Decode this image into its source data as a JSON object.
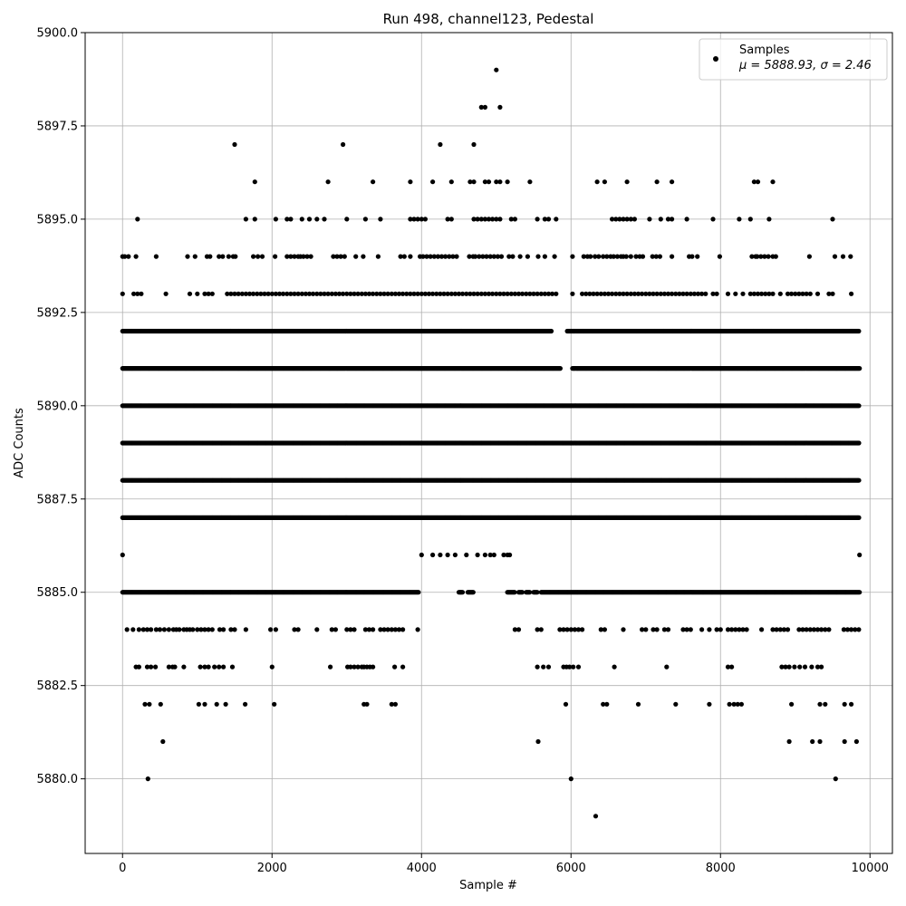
{
  "chart_data": {
    "type": "scatter",
    "title": "Run 498, channel123, Pedestal",
    "xlabel": "Sample #",
    "ylabel": "ADC Counts",
    "xlim": [
      -500,
      10300
    ],
    "ylim": [
      5878,
      5900
    ],
    "xticks": [
      0,
      2000,
      4000,
      6000,
      8000,
      10000
    ],
    "xtick_labels": [
      "0",
      "2000",
      "4000",
      "6000",
      "8000",
      "10000"
    ],
    "yticks": [
      5880,
      5882.5,
      5885,
      5887.5,
      5890,
      5892.5,
      5895,
      5897.5,
      5900
    ],
    "ytick_labels": [
      "5880.0",
      "5882.5",
      "5885.0",
      "5887.5",
      "5890.0",
      "5892.5",
      "5895.0",
      "5897.5",
      "5900.0"
    ],
    "grid": true,
    "legend": {
      "placement": "top-right",
      "entries": [
        {
          "label": "Samples",
          "stats": "μ = 5888.93, σ = 2.46"
        }
      ]
    },
    "marker_color": "#000000",
    "series": [
      {
        "name": "Samples",
        "n_samples": 9860,
        "levels": [
          {
            "y": 5887,
            "x": [
              0,
              9860
            ]
          },
          {
            "y": 5888,
            "x": [
              0,
              9860
            ]
          },
          {
            "y": 5889,
            "x": [
              0,
              9860
            ]
          },
          {
            "y": 5890,
            "x": [
              0,
              9860
            ]
          },
          {
            "y": 5891,
            "x": [
              0,
              5860,
              6020,
              9860
            ]
          },
          {
            "y": 5892,
            "x": [
              0,
              5740,
              5950,
              9860
            ]
          },
          {
            "y": 5893,
            "x": [
              0,
              150,
              200,
              250,
              580,
              900,
              1000,
              1100,
              1150,
              1200,
              1400,
              1450,
              1500,
              1550,
              1600,
              1650,
              1700,
              1750,
              1800,
              1850,
              1900,
              1950,
              2000,
              2050,
              2100,
              2150,
              2200,
              2250,
              2300,
              2350,
              2400,
              2450,
              2500,
              2550,
              2600,
              2650,
              2700,
              2750,
              2800,
              2850,
              2900,
              2950,
              3000,
              3050,
              3100,
              3150,
              3200,
              3250,
              3300,
              3350,
              3400,
              3450,
              3500,
              3550,
              3600,
              3650,
              3700,
              3750,
              3800,
              3850,
              3900,
              3950,
              4000,
              4050,
              4100,
              4150,
              4200,
              4250,
              4300,
              4350,
              4400,
              4450,
              4500,
              4550,
              4600,
              4650,
              4700,
              4750,
              4800,
              4850,
              4900,
              4950,
              5000,
              5050,
              5100,
              5150,
              5200,
              5250,
              5300,
              5350,
              5400,
              5450,
              5500,
              5550,
              5600,
              5650,
              5700,
              5750,
              5800,
              6020,
              6150,
              6200,
              6250,
              6300,
              6350,
              6400,
              6450,
              6500,
              6550,
              6600,
              6650,
              6700,
              6750,
              6800,
              6850,
              6900,
              6950,
              7000,
              7050,
              7100,
              7150,
              7200,
              7250,
              7300,
              7350,
              7400,
              7450,
              7500,
              7550,
              7600,
              7650,
              7700,
              7750,
              7800,
              7900,
              7950,
              8100,
              8200,
              8300,
              8400,
              8450,
              8500,
              8550,
              8600,
              8650,
              8700,
              8800,
              8900,
              8950,
              9000,
              9050,
              9100,
              9150,
              9200,
              9300,
              9450,
              9500,
              9750
            ]
          },
          {
            "y": 5894,
            "x": [
              0,
              30,
              80,
              180,
              450,
              870,
              970,
              1130,
              1170,
              1290,
              1340,
              1420,
              1480,
              1510,
              1750,
              1810,
              1870,
              2040,
              2200,
              2250,
              2300,
              2350,
              2380,
              2420,
              2470,
              2520,
              2820,
              2870,
              2920,
              2970,
              3120,
              3220,
              3420,
              3720,
              3770,
              3850,
              3980,
              4020,
              4070,
              4120,
              4170,
              4220,
              4270,
              4320,
              4370,
              4420,
              4470,
              4640,
              4690,
              4720,
              4770,
              4820,
              4870,
              4920,
              4970,
              5020,
              5070,
              5170,
              5220,
              5320,
              5420,
              5560,
              5650,
              5780,
              6020,
              6170,
              6220,
              6260,
              6320,
              6370,
              6430,
              6480,
              6530,
              6570,
              6620,
              6670,
              6700,
              6740,
              6800,
              6870,
              6920,
              6960,
              7090,
              7140,
              7190,
              7350,
              7580,
              7620,
              7690,
              7990,
              8420,
              8470,
              8490,
              8540,
              8590,
              8640,
              8700,
              8740,
              9190,
              9530,
              9640,
              9740
            ]
          },
          {
            "y": 5895,
            "x": [
              200,
              1650,
              1770,
              2050,
              2200,
              2250,
              2400,
              2500,
              2600,
              2700,
              3000,
              3250,
              3450,
              3850,
              3900,
              3950,
              4000,
              4050,
              4350,
              4400,
              4700,
              4750,
              4800,
              4850,
              4900,
              4950,
              5000,
              5050,
              5200,
              5250,
              5550,
              5650,
              5700,
              5800,
              6550,
              6600,
              6650,
              6700,
              6750,
              6800,
              6850,
              7050,
              7200,
              7300,
              7350,
              7550,
              7900,
              8250,
              8400,
              8650,
              9500
            ]
          },
          {
            "y": 5896,
            "x": [
              1770,
              2750,
              3350,
              3850,
              4150,
              4400,
              4650,
              4700,
              4850,
              4900,
              5000,
              5050,
              5150,
              5450,
              6350,
              6450,
              6750,
              7150,
              7350,
              8450,
              8500,
              8700
            ]
          },
          {
            "y": 5897,
            "x": [
              1500,
              2950,
              4250,
              4700
            ]
          },
          {
            "y": 5898,
            "x": [
              4800,
              4850,
              5050
            ]
          },
          {
            "y": 5899,
            "x": [
              5000
            ]
          },
          {
            "y": 5886,
            "x": [
              0,
              4000,
              4150,
              4250,
              4350,
              4450,
              4600,
              4750,
              4850,
              4920,
              4970,
              5100,
              5150,
              5180,
              9860
            ]
          },
          {
            "y": 5885,
            "x": [
              0,
              3960,
              4500,
              4550,
              4620,
              4700,
              5150,
              5250,
              5300,
              5350,
              5400,
              5450,
              5500,
              5550,
              5600,
              9860
            ]
          },
          {
            "y": 5884,
            "x": [
              60,
              140,
              220,
              280,
              330,
              380,
              450,
              500,
              560,
              620,
              680,
              720,
              760,
              820,
              860,
              900,
              940,
              1000,
              1050,
              1100,
              1150,
              1200,
              1300,
              1350,
              1450,
              1500,
              1650,
              1980,
              2050,
              2300,
              2350,
              2600,
              2800,
              2850,
              3000,
              3050,
              3100,
              3250,
              3300,
              3350,
              3450,
              3500,
              3550,
              3600,
              3650,
              3700,
              3750,
              3950,
              5250,
              5300,
              5550,
              5600,
              5850,
              5900,
              5950,
              6000,
              6050,
              6100,
              6150,
              6400,
              6450,
              6700,
              6950,
              7000,
              7100,
              7150,
              7250,
              7300,
              7500,
              7550,
              7600,
              7750,
              7850,
              7950,
              8000,
              8100,
              8150,
              8200,
              8250,
              8300,
              8350,
              8550,
              8700,
              8750,
              8800,
              8850,
              8900,
              9050,
              9100,
              9150,
              9200,
              9250,
              9300,
              9350,
              9400,
              9450,
              9650,
              9700,
              9750,
              9800,
              9850
            ]
          },
          {
            "y": 5883,
            "x": [
              180,
              220,
              330,
              380,
              440,
              620,
              670,
              700,
              820,
              1040,
              1100,
              1150,
              1230,
              1290,
              1350,
              1470,
              2000,
              2780,
              3010,
              3050,
              3100,
              3150,
              3200,
              3230,
              3270,
              3310,
              3350,
              3640,
              3750,
              5550,
              5630,
              5700,
              5900,
              5940,
              5980,
              6030,
              6100,
              6580,
              7280,
              8100,
              8150,
              8820,
              8870,
              8920,
              8990,
              9060,
              9130,
              9220,
              9300,
              9350
            ]
          },
          {
            "y": 5882,
            "x": [
              300,
              360,
              510,
              1020,
              1100,
              1260,
              1380,
              1640,
              2030,
              3230,
              3270,
              3600,
              3650,
              5930,
              6430,
              6480,
              6900,
              7400,
              7850,
              8120,
              8180,
              8230,
              8280,
              8950,
              9330,
              9400,
              9660,
              9750
            ]
          },
          {
            "y": 5881,
            "x": [
              540,
              5560,
              8920,
              9230,
              9330,
              9660,
              9820
            ]
          },
          {
            "y": 5880,
            "x": [
              340,
              6000,
              9540
            ]
          },
          {
            "y": 5879,
            "x": [
              6330
            ]
          }
        ]
      }
    ]
  }
}
